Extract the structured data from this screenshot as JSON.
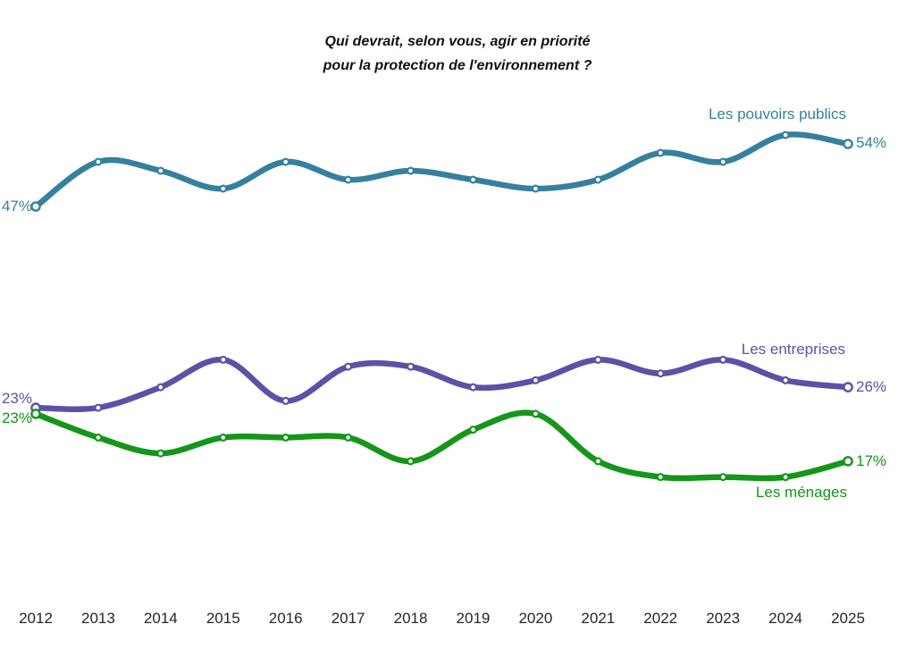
{
  "title": {
    "line1": "Qui devrait, selon vous, agir en priorité",
    "line2": "pour la protection de l'environnement ?"
  },
  "chart_data": {
    "type": "line",
    "x": [
      2012,
      2013,
      2014,
      2015,
      2016,
      2017,
      2018,
      2019,
      2020,
      2021,
      2022,
      2023,
      2024,
      2025
    ],
    "series": [
      {
        "name": "Les pouvoirs publics",
        "color": "#35809E",
        "values": [
          47,
          52,
          51,
          49,
          52,
          50,
          51,
          50,
          49,
          50,
          53,
          52,
          55,
          54
        ],
        "start_label": "47%",
        "end_label": "54%"
      },
      {
        "name": "Les entreprises",
        "color": "#5C51A6",
        "values": [
          23,
          23,
          26,
          30,
          24,
          29,
          29,
          26,
          27,
          30,
          28,
          30,
          27,
          26
        ],
        "start_label": "23%",
        "end_label": "26%"
      },
      {
        "name": "Les ménages",
        "color": "#149619",
        "values": [
          23,
          20,
          18,
          20,
          20,
          20,
          17,
          21,
          23,
          17,
          15,
          15,
          15,
          17
        ],
        "start_label": "23%",
        "end_label": "17%"
      }
    ],
    "title": "Qui devrait, selon vous, agir en priorité pour la protection de l'environnement ?",
    "xlabel": "",
    "ylabel": "",
    "unit": "percent",
    "grid": false,
    "axes_visible": false,
    "legend_position": "inline-near-line-end",
    "marker_style": "open-circle-every-year",
    "line_style": "smooth-spline"
  }
}
